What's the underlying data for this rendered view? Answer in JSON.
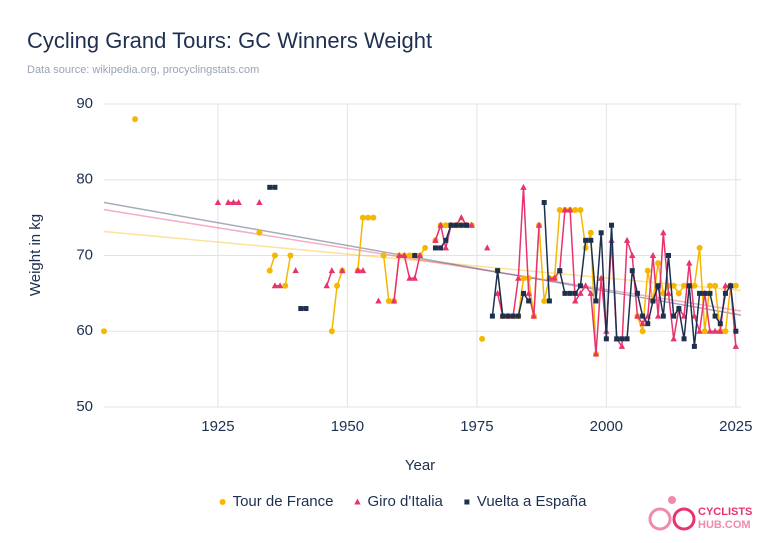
{
  "chart_data": {
    "type": "line",
    "title": "Cycling Grand Tours: GC Winners Weight",
    "subtitle": "Data source: wikipedia.org, procyclingstats.com",
    "x_label": "Year",
    "y_label": "Weight in kg",
    "xlim": [
      1903,
      2026
    ],
    "ylim": [
      50,
      90
    ],
    "xticks": [
      1925,
      1950,
      1975,
      2000,
      2025
    ],
    "yticks": [
      50,
      60,
      70,
      80,
      90
    ],
    "grid": true,
    "trend_lines": true,
    "legend": "bottom",
    "series": [
      {
        "name": "Tour de France",
        "color": "#f5b800",
        "marker": "circle",
        "x": [
          1903,
          1904,
          1909,
          1910,
          1933,
          1934,
          1935,
          1936,
          1937,
          1938,
          1939,
          1940,
          1947,
          1948,
          1949,
          1950,
          1952,
          1953,
          1954,
          1955,
          1956,
          1957,
          1958,
          1959,
          1960,
          1961,
          1962,
          1963,
          1964,
          1965,
          1966,
          1967,
          1968,
          1969,
          1970,
          1971,
          1972,
          1973,
          1974,
          1975,
          1976,
          1977,
          1979,
          1980,
          1981,
          1982,
          1983,
          1984,
          1985,
          1986,
          1987,
          1988,
          1989,
          1990,
          1991,
          1992,
          1993,
          1994,
          1995,
          1996,
          1997,
          1998,
          1999,
          2006,
          2007,
          2008,
          2009,
          2010,
          2011,
          2012,
          2013,
          2014,
          2015,
          2016,
          2017,
          2018,
          2019,
          2020,
          2021,
          2022,
          2023,
          2024,
          2025
        ],
        "values": [
          60,
          null,
          88,
          null,
          73,
          null,
          68,
          70,
          null,
          66,
          70,
          null,
          60,
          66,
          68,
          null,
          68,
          75,
          75,
          75,
          null,
          70,
          64,
          64,
          70,
          70,
          70,
          70,
          70,
          71,
          null,
          72,
          74,
          74,
          74,
          74,
          74,
          74,
          74,
          null,
          59,
          null,
          68,
          62,
          62,
          62,
          62,
          67,
          67,
          62,
          74,
          64,
          67,
          67,
          76,
          76,
          76,
          76,
          76,
          71,
          73,
          57,
          null,
          62,
          60,
          68,
          64,
          69,
          65,
          66,
          66,
          65,
          66,
          66,
          66,
          71,
          60,
          66,
          66,
          60,
          60,
          66,
          66
        ]
      },
      {
        "name": "Giro d'Italia",
        "color": "#e8336d",
        "marker": "triangle",
        "x": [
          1925,
          1926,
          1927,
          1928,
          1929,
          1930,
          1933,
          1934,
          1936,
          1937,
          1938,
          1940,
          1941,
          1946,
          1947,
          1948,
          1949,
          1950,
          1952,
          1953,
          1954,
          1956,
          1957,
          1959,
          1960,
          1961,
          1962,
          1963,
          1964,
          1965,
          1967,
          1968,
          1969,
          1970,
          1971,
          1972,
          1973,
          1974,
          1975,
          1977,
          1978,
          1979,
          1980,
          1981,
          1982,
          1983,
          1984,
          1985,
          1986,
          1987,
          1988,
          1989,
          1990,
          1991,
          1992,
          1993,
          1994,
          1995,
          1996,
          1997,
          1998,
          1999,
          2000,
          2001,
          2002,
          2003,
          2004,
          2005,
          2006,
          2007,
          2008,
          2009,
          2010,
          2011,
          2012,
          2013,
          2014,
          2015,
          2016,
          2017,
          2018,
          2019,
          2020,
          2021,
          2022,
          2023,
          2024,
          2025
        ],
        "values": [
          77,
          null,
          77,
          77,
          77,
          null,
          77,
          null,
          66,
          66,
          null,
          68,
          null,
          66,
          68,
          null,
          68,
          null,
          68,
          68,
          null,
          64,
          null,
          64,
          70,
          70,
          67,
          67,
          70,
          null,
          72,
          74,
          71,
          74,
          74,
          75,
          74,
          74,
          null,
          71,
          null,
          65,
          62,
          62,
          62,
          67,
          79,
          65,
          62,
          74,
          null,
          67,
          67,
          68,
          76,
          76,
          64,
          65,
          66,
          65,
          57,
          67,
          60,
          72,
          59,
          58,
          72,
          70,
          62,
          61,
          62,
          70,
          62,
          73,
          65,
          59,
          63,
          62,
          69,
          62,
          60,
          65,
          60,
          60,
          60,
          66,
          66,
          58
        ]
      },
      {
        "name": "Vuelta a España",
        "color": "#1e3050",
        "marker": "square",
        "x": [
          1935,
          1936,
          1937,
          1941,
          1942,
          1943,
          1963,
          1964,
          1967,
          1968,
          1969,
          1970,
          1971,
          1972,
          1973,
          1974,
          1978,
          1979,
          1980,
          1981,
          1982,
          1983,
          1984,
          1985,
          1986,
          1988,
          1989,
          1990,
          1991,
          1992,
          1993,
          1994,
          1995,
          1996,
          1997,
          1998,
          1999,
          2000,
          2001,
          2002,
          2003,
          2004,
          2005,
          2006,
          2007,
          2008,
          2009,
          2010,
          2011,
          2012,
          2013,
          2014,
          2015,
          2016,
          2017,
          2018,
          2019,
          2020,
          2021,
          2022,
          2023,
          2024,
          2025
        ],
        "values": [
          79,
          79,
          null,
          63,
          63,
          null,
          70,
          null,
          71,
          71,
          72,
          74,
          74,
          74,
          74,
          null,
          62,
          68,
          62,
          62,
          62,
          62,
          65,
          64,
          null,
          77,
          64,
          null,
          68,
          65,
          65,
          65,
          66,
          72,
          72,
          64,
          73,
          59,
          74,
          59,
          59,
          59,
          68,
          65,
          62,
          61,
          64,
          66,
          62,
          70,
          62,
          63,
          59,
          66,
          58,
          65,
          65,
          65,
          62,
          61,
          65,
          66,
          60
        ]
      }
    ],
    "logo": {
      "line1": "CYCLISTS",
      "line2": "HUB.COM"
    }
  }
}
